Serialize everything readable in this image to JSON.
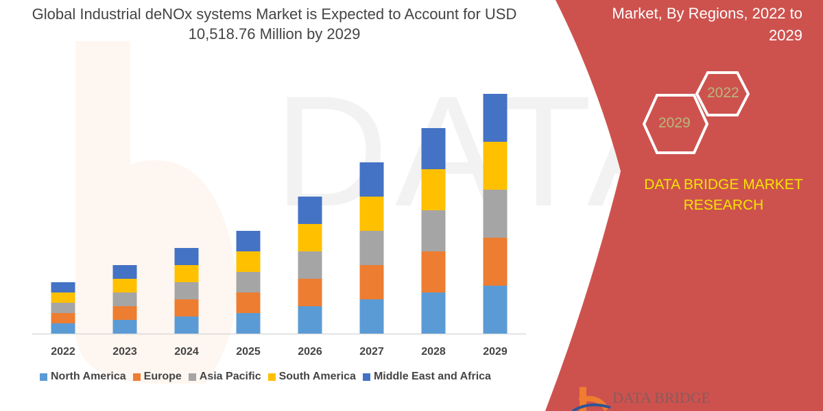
{
  "chart_data": {
    "type": "bar",
    "stacked": true,
    "title": "Global Industrial deNOx systems Market is Expected to Account for USD 10,518.76 Million by 2029",
    "categories": [
      "2022",
      "2023",
      "2024",
      "2025",
      "2026",
      "2027",
      "2028",
      "2029"
    ],
    "series": [
      {
        "name": "North America",
        "color": "#5b9bd5",
        "values": [
          15,
          20,
          25,
          30,
          40,
          50,
          60,
          70
        ]
      },
      {
        "name": "Europe",
        "color": "#ed7d31",
        "values": [
          15,
          20,
          25,
          30,
          40,
          50,
          60,
          70
        ]
      },
      {
        "name": "Asia Pacific",
        "color": "#a5a5a5",
        "values": [
          15,
          20,
          25,
          30,
          40,
          50,
          60,
          70
        ]
      },
      {
        "name": "South America",
        "color": "#ffc000",
        "values": [
          15,
          20,
          25,
          30,
          40,
          50,
          60,
          70
        ]
      },
      {
        "name": "Middle East and Africa",
        "color": "#4472c4",
        "values": [
          15,
          20,
          25,
          30,
          40,
          50,
          60,
          70
        ]
      }
    ],
    "ylim": [
      0,
      380
    ],
    "grid": false,
    "yaxis_visible": false,
    "legend_position": "bottom"
  },
  "side_panel": {
    "title": "Market, By Regions, 2022 to 2029",
    "hex_years": [
      "2022",
      "2029"
    ],
    "brand": "DATA BRIDGE MARKET RESEARCH",
    "logo_text": "DATA BRIDGE",
    "panel_color": "#cd524e"
  }
}
